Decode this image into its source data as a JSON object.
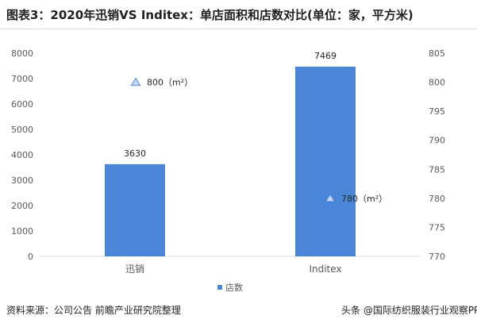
{
  "header": {
    "title": "图表3：2020年迅销VS Inditex：单店面积和店数对比(单位：家，平方米)"
  },
  "footer": {
    "source": "资料来源：公司公告 前瞻产业研究院整理",
    "credit": "头条 @国际纺织服装行业观察PP"
  },
  "colors": {
    "bar": "#4a86d8",
    "marker": "#c9daf8",
    "marker_stroke": "#4a86d8",
    "axis_text": "#595959",
    "grid": "#d9d9d9"
  },
  "chart_data": {
    "type": "bar",
    "categories": [
      "迅销",
      "Inditex"
    ],
    "series": [
      {
        "name": "店数",
        "type": "bar",
        "axis": "left",
        "values": [
          3630,
          7469
        ]
      },
      {
        "type": "marker",
        "axis": "right",
        "values": [
          800,
          780
        ],
        "labels": [
          "800（m²）",
          "780（m²）"
        ]
      }
    ],
    "data_labels": [
      "3630",
      "7469"
    ],
    "y_left": {
      "lim": [
        0,
        8000
      ],
      "ticks": [
        0,
        1000,
        2000,
        3000,
        4000,
        5000,
        6000,
        7000,
        8000
      ]
    },
    "y_right": {
      "lim": [
        770,
        805
      ],
      "ticks": [
        770,
        775,
        780,
        785,
        790,
        795,
        800,
        805
      ]
    },
    "legend": {
      "position": "bottom",
      "entries": [
        "店数"
      ]
    },
    "grid": false
  }
}
